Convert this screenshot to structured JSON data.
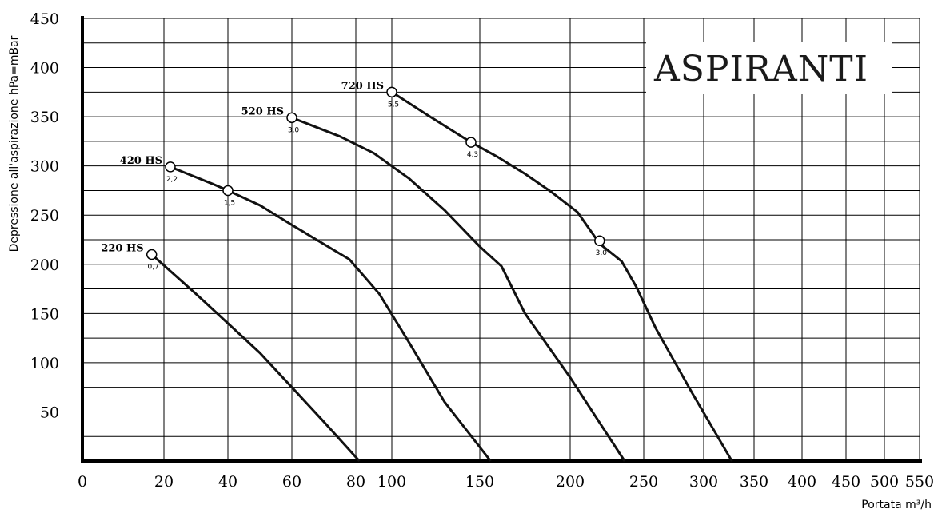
{
  "chart_data": {
    "type": "line",
    "title": "ASPIRANTI",
    "xlabel": "Portata  m³/h",
    "ylabel": "Depressione  all'aspirazione  hPa=mBar",
    "ylim": [
      0,
      450
    ],
    "x_ticks": [
      0,
      20,
      40,
      60,
      80,
      100,
      150,
      200,
      250,
      300,
      350,
      400,
      450,
      500,
      550
    ],
    "y_ticks": [
      50,
      100,
      150,
      200,
      250,
      300,
      350,
      400,
      450
    ],
    "grid": true,
    "series": [
      {
        "name": "220 HS",
        "points": [
          [
            17,
            210
          ],
          [
            30,
            170
          ],
          [
            40,
            140
          ],
          [
            50,
            110
          ],
          [
            60,
            75
          ],
          [
            70,
            40
          ],
          [
            82,
            0
          ]
        ],
        "markers": [
          {
            "x": 17,
            "y": 210,
            "label": "0,7"
          }
        ]
      },
      {
        "name": "420 HS",
        "points": [
          [
            22,
            299
          ],
          [
            35,
            282
          ],
          [
            40,
            275
          ],
          [
            50,
            260
          ],
          [
            60,
            240
          ],
          [
            78,
            205
          ],
          [
            93,
            170
          ],
          [
            110,
            120
          ],
          [
            130,
            60
          ],
          [
            156,
            0
          ]
        ],
        "markers": [
          {
            "x": 22,
            "y": 299,
            "label": "2,2"
          },
          {
            "x": 40,
            "y": 275,
            "label": "1,5"
          }
        ]
      },
      {
        "name": "520 HS",
        "points": [
          [
            60,
            349
          ],
          [
            75,
            330
          ],
          [
            90,
            313
          ],
          [
            110,
            287
          ],
          [
            130,
            255
          ],
          [
            150,
            218
          ],
          [
            162,
            198
          ],
          [
            175,
            150
          ],
          [
            200,
            85
          ],
          [
            237,
            0
          ]
        ],
        "markers": [
          {
            "x": 60,
            "y": 349,
            "label": "3,0"
          }
        ]
      },
      {
        "name": "720 HS",
        "points": [
          [
            100,
            375
          ],
          [
            120,
            352
          ],
          [
            145,
            324
          ],
          [
            160,
            309
          ],
          [
            175,
            292
          ],
          [
            190,
            273
          ],
          [
            205,
            253
          ],
          [
            220,
            221
          ],
          [
            235,
            203
          ],
          [
            245,
            177
          ],
          [
            260,
            135
          ],
          [
            290,
            70
          ],
          [
            328,
            0
          ]
        ],
        "markers": [
          {
            "x": 100,
            "y": 375,
            "label": "5,5"
          },
          {
            "x": 145,
            "y": 324,
            "label": "4,3"
          },
          {
            "x": 220,
            "y": 224,
            "label": "3,0"
          }
        ]
      }
    ]
  }
}
